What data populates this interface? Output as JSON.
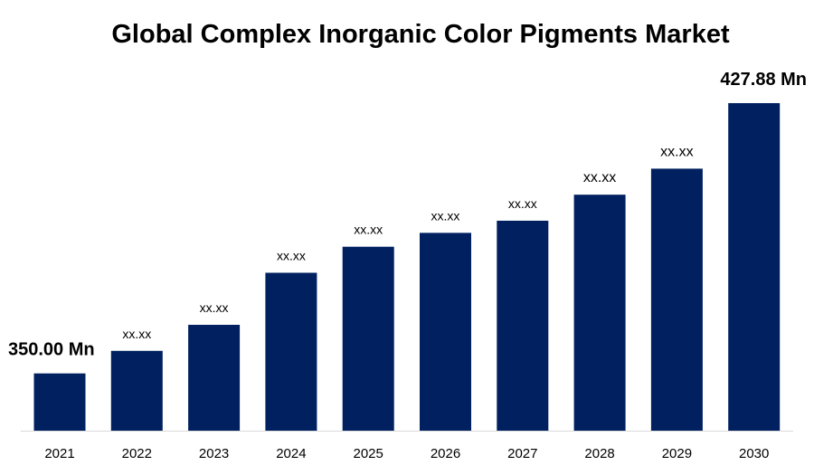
{
  "chart_data": {
    "type": "bar",
    "title": "Global Complex Inorganic Color Pigments Market",
    "xlabel": "",
    "ylabel": "",
    "categories": [
      "2021",
      "2022",
      "2023",
      "2024",
      "2025",
      "2026",
      "2027",
      "2028",
      "2029",
      "2030"
    ],
    "values": [
      350.0,
      356.5,
      364.0,
      379.0,
      386.5,
      390.5,
      394.0,
      401.5,
      409.0,
      427.88
    ],
    "data_labels": [
      "350.00 Mn",
      "xx.xx",
      "xx.xx",
      "xx.xx",
      "xx.xx",
      "xx.xx",
      "xx.xx",
      "xx.xx",
      "xx.xx",
      "427.88 Mn"
    ],
    "ylim": [
      333.5,
      427.88
    ],
    "grid": false,
    "legend": "none",
    "bar_color": "#002060",
    "axis_color": "#d9d9d9"
  }
}
